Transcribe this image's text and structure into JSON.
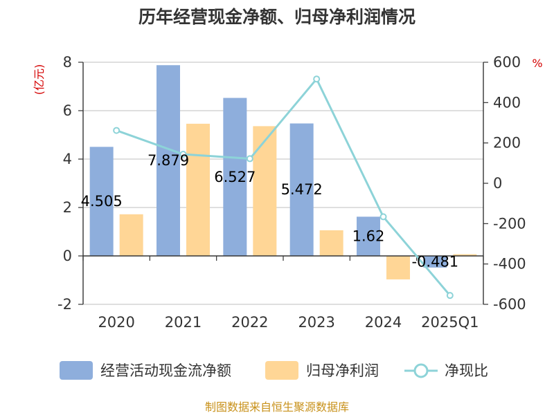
{
  "chart_data": {
    "type": "bar",
    "title": "历年经营现金净额、归母净利润情况",
    "categories": [
      "2020",
      "2021",
      "2022",
      "2023",
      "2024",
      "2025Q1"
    ],
    "left_axis": {
      "unit": "(亿元)",
      "ylim": [
        -2,
        8
      ],
      "ticks": [
        -2,
        0,
        2,
        4,
        6,
        8
      ]
    },
    "right_axis": {
      "unit": "%",
      "ylim": [
        -600,
        600
      ],
      "ticks": [
        -600,
        -400,
        -200,
        0,
        200,
        400,
        600
      ]
    },
    "series": [
      {
        "name": "经营活动现金流净额",
        "type": "bar",
        "axis": "left",
        "color": "#8eaedc",
        "values": [
          4.505,
          7.879,
          6.527,
          5.472,
          1.62,
          -0.481
        ],
        "labels": [
          "4.505",
          "7.879",
          "6.527",
          "5.472",
          "1.62",
          "-0.481"
        ]
      },
      {
        "name": "归母净利润",
        "type": "bar",
        "axis": "left",
        "color": "#ffd696",
        "values": [
          1.72,
          5.46,
          5.36,
          1.06,
          -0.97,
          0.07
        ]
      },
      {
        "name": "净现比",
        "type": "line",
        "axis": "right",
        "color": "#8dd3d8",
        "values": [
          262,
          144,
          122,
          517,
          -166,
          -556
        ]
      }
    ],
    "grid": true,
    "legend_position": "bottom"
  },
  "source": "制图数据来自恒生聚源数据库"
}
